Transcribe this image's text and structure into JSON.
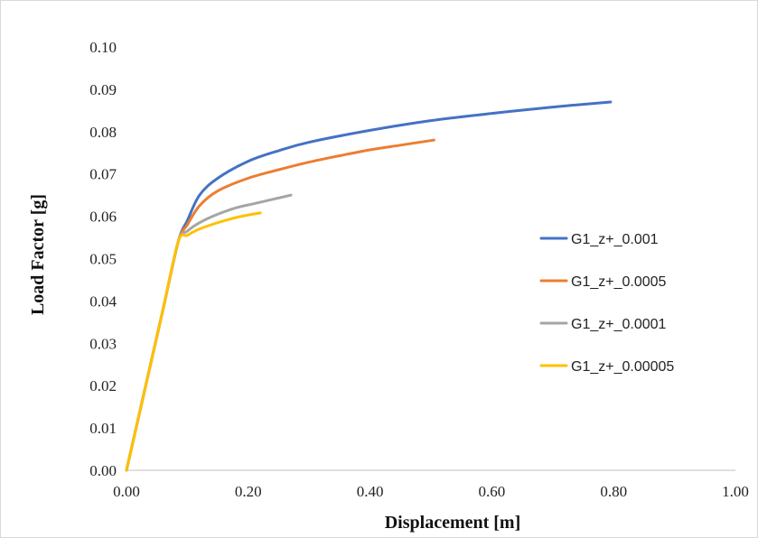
{
  "chart_data": {
    "type": "line",
    "title": "",
    "xlabel": "Displacement [m]",
    "ylabel": "Load Factor [g]",
    "xlim": [
      0,
      1.0
    ],
    "ylim": [
      0,
      0.1
    ],
    "x_ticks": [
      "0.00",
      "0.20",
      "0.40",
      "0.60",
      "0.80",
      "1.00"
    ],
    "y_ticks": [
      "0.00",
      "0.01",
      "0.02",
      "0.03",
      "0.04",
      "0.05",
      "0.06",
      "0.07",
      "0.08",
      "0.09",
      "0.10"
    ],
    "grid": false,
    "legend_position": "right",
    "series": [
      {
        "name": "G1_z+_0.001",
        "color": "#4472C4",
        "x": [
          0,
          0.03,
          0.06,
          0.085,
          0.1,
          0.12,
          0.15,
          0.2,
          0.25,
          0.3,
          0.4,
          0.5,
          0.6,
          0.7,
          0.795
        ],
        "y": [
          0,
          0.019,
          0.038,
          0.054,
          0.059,
          0.065,
          0.069,
          0.073,
          0.0755,
          0.0775,
          0.0803,
          0.0826,
          0.0843,
          0.0858,
          0.087
        ]
      },
      {
        "name": "G1_z+_0.0005",
        "color": "#ED7D31",
        "x": [
          0,
          0.03,
          0.06,
          0.085,
          0.1,
          0.12,
          0.15,
          0.2,
          0.25,
          0.3,
          0.35,
          0.4,
          0.45,
          0.505
        ],
        "y": [
          0,
          0.019,
          0.038,
          0.054,
          0.058,
          0.0625,
          0.066,
          0.069,
          0.071,
          0.0728,
          0.0743,
          0.0757,
          0.0768,
          0.078
        ]
      },
      {
        "name": "G1_z+_0.0001",
        "color": "#A5A5A5",
        "x": [
          0,
          0.03,
          0.06,
          0.085,
          0.1,
          0.12,
          0.15,
          0.18,
          0.21,
          0.24,
          0.27
        ],
        "y": [
          0,
          0.019,
          0.038,
          0.054,
          0.0565,
          0.0585,
          0.0605,
          0.062,
          0.063,
          0.064,
          0.065
        ]
      },
      {
        "name": "G1_z+_0.00005",
        "color": "#FFC000",
        "x": [
          0,
          0.03,
          0.06,
          0.085,
          0.1,
          0.12,
          0.15,
          0.18,
          0.2,
          0.22
        ],
        "y": [
          0,
          0.019,
          0.038,
          0.054,
          0.0555,
          0.057,
          0.0585,
          0.0597,
          0.0603,
          0.0608
        ]
      }
    ]
  }
}
